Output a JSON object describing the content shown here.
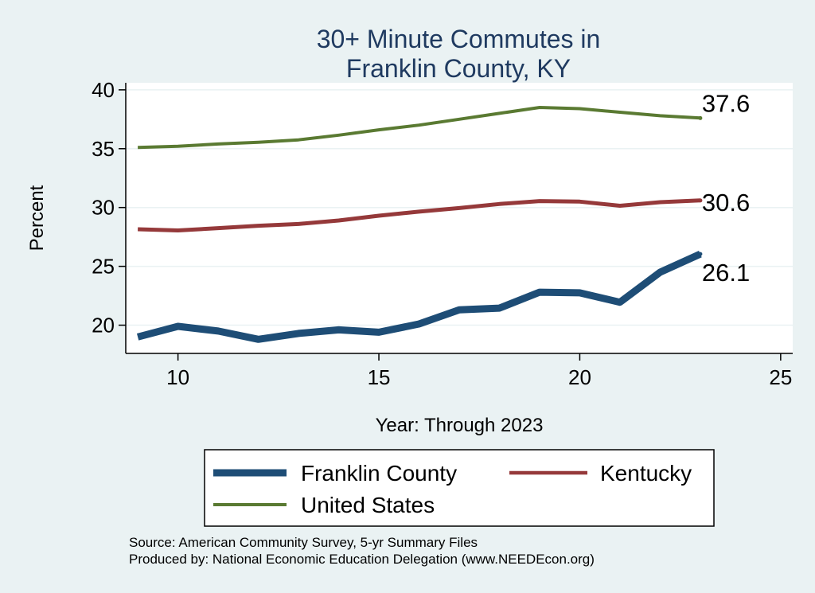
{
  "chart_data": {
    "type": "line",
    "title": [
      "30+ Minute Commutes in",
      "Franklin County, KY"
    ],
    "xlabel": "Year: Through 2023",
    "ylabel": "Percent",
    "xlim": [
      8.7,
      25.3
    ],
    "ylim": [
      17.6,
      40.6
    ],
    "xticks": [
      10,
      15,
      20,
      25
    ],
    "yticks": [
      20,
      25,
      30,
      35,
      40
    ],
    "grid": true,
    "x": [
      9,
      10,
      11,
      12,
      13,
      14,
      15,
      16,
      17,
      18,
      19,
      20,
      21,
      22,
      23
    ],
    "series": [
      {
        "name": "United States",
        "color": "#5a7a32",
        "values": [
          35.1,
          35.2,
          35.4,
          35.55,
          35.75,
          36.15,
          36.6,
          37.0,
          37.5,
          38.0,
          38.5,
          38.4,
          38.1,
          37.8,
          37.6
        ],
        "end_label": "37.6"
      },
      {
        "name": "Kentucky",
        "color": "#95393a",
        "values": [
          28.15,
          28.05,
          28.25,
          28.45,
          28.6,
          28.9,
          29.3,
          29.65,
          29.95,
          30.3,
          30.55,
          30.5,
          30.15,
          30.45,
          30.6
        ],
        "end_label": "30.6"
      },
      {
        "name": "Franklin County",
        "color": "#1e4d76",
        "values": [
          19.0,
          19.9,
          19.5,
          18.8,
          19.3,
          19.6,
          19.4,
          20.1,
          21.3,
          21.45,
          22.8,
          22.75,
          21.95,
          24.5,
          26.05
        ],
        "end_label": "26.1"
      }
    ],
    "legend": {
      "position": "bottom",
      "entries": [
        "Franklin County",
        "Kentucky",
        "United States"
      ]
    },
    "notes": [
      "Source: American Community Survey, 5-yr Summary Files",
      "Produced by: National Economic Education Delegation (www.NEEDEcon.org)"
    ]
  }
}
